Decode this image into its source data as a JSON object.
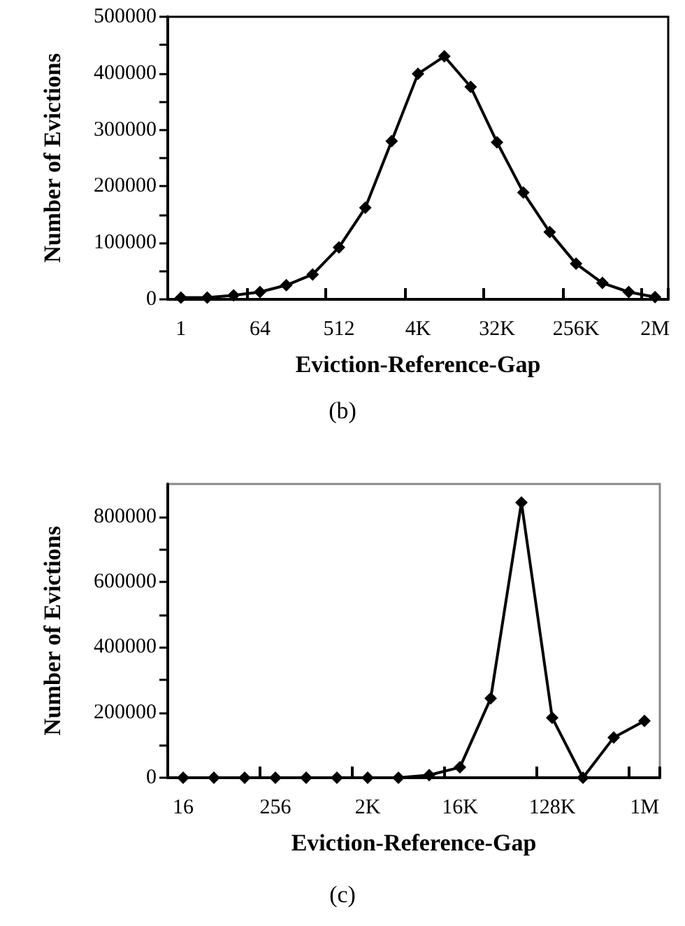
{
  "chart_data": [
    {
      "type": "line",
      "xlabel": "Eviction-Reference-Gap",
      "ylabel": "Number of Evictions",
      "annotations": [
        "(b)"
      ],
      "categories": [
        "1",
        null,
        null,
        "64",
        null,
        null,
        "512",
        null,
        null,
        "4K",
        null,
        null,
        "32K",
        null,
        null,
        "256K",
        null,
        null,
        "2M"
      ],
      "series": [
        {
          "color": "#000000",
          "values": [
            3000,
            3000,
            7000,
            13000,
            25000,
            44000,
            92000,
            162000,
            280000,
            399000,
            430000,
            376000,
            278000,
            189000,
            119000,
            63000,
            29000,
            13000,
            4000
          ]
        }
      ],
      "ylim": [
        0,
        500000
      ],
      "yticks": [
        0,
        {
          "value": 50000,
          "label": null
        },
        100000,
        {
          "value": 150000,
          "label": null
        },
        200000,
        {
          "value": 250000,
          "label": null
        },
        300000,
        {
          "value": 350000,
          "label": null
        },
        400000,
        {
          "value": 450000,
          "label": null
        },
        500000
      ],
      "grid": false,
      "marker": "diamond",
      "line_style": "solid"
    },
    {
      "type": "line",
      "xlabel": "Eviction-Reference-Gap",
      "ylabel": "Number of Evictions",
      "annotations": [
        "(c)"
      ],
      "categories": [
        "16",
        null,
        null,
        "256",
        null,
        null,
        "2K",
        null,
        null,
        "16K",
        null,
        null,
        "128K",
        null,
        null,
        "1M"
      ],
      "series": [
        {
          "color": "#000000",
          "values": [
            0,
            0,
            0,
            0,
            0,
            0,
            0,
            0,
            8000,
            32000,
            243000,
            843000,
            184000,
            0,
            123000,
            174000
          ]
        }
      ],
      "ylim": [
        0,
        900000
      ],
      "yticks": [
        0,
        {
          "value": 100000,
          "label": null
        },
        200000,
        {
          "value": 300000,
          "label": null
        },
        400000,
        {
          "value": 500000,
          "label": null
        },
        600000,
        {
          "value": 700000,
          "label": null
        },
        800000
      ],
      "grid": false,
      "marker": "diamond",
      "line_style": "solid"
    }
  ]
}
